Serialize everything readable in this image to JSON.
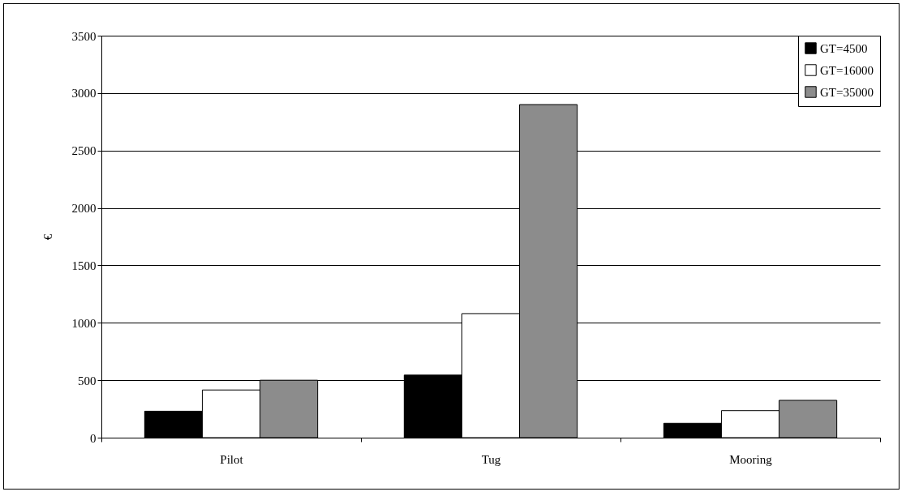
{
  "chart_data": {
    "type": "bar",
    "ylabel": "€",
    "categories": [
      "Pilot",
      "Tug",
      "Mooring"
    ],
    "series": [
      {
        "name": "GT=4500",
        "color": "#000000",
        "values": [
          230,
          545,
          125
        ]
      },
      {
        "name": "GT=16000",
        "color": "#ffffff",
        "values": [
          415,
          1080,
          235
        ]
      },
      {
        "name": "GT=35000",
        "color": "#8c8c8c",
        "values": [
          500,
          2900,
          325
        ]
      }
    ],
    "ylim": [
      0,
      3500
    ],
    "yticks": [
      0,
      500,
      1000,
      1500,
      2000,
      2500,
      3000,
      3500
    ],
    "grid": "y",
    "legend": "top right"
  }
}
